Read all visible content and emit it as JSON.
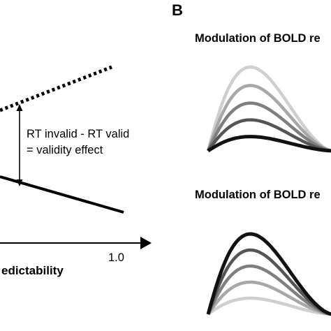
{
  "panel_b": {
    "letter": "B",
    "top_title": "Modulation of BOLD re",
    "bottom_title": "Modulation of BOLD re",
    "top_curve_colors": [
      "#cfcfcf",
      "#a8a8a8",
      "#7f7f7f",
      "#555555",
      "#111111"
    ],
    "bottom_curve_colors": [
      "#cfcfcf",
      "#a8a8a8",
      "#7f7f7f",
      "#555555",
      "#111111"
    ],
    "top_relative_peaks": [
      1.0,
      0.78,
      0.57,
      0.37,
      0.17
    ],
    "bottom_relative_peaks": [
      0.2,
      0.4,
      0.6,
      0.8,
      1.0
    ]
  },
  "panel_a": {
    "effect_label_line1": "RT invalid - RT valid",
    "effect_label_line2": "= validity effect",
    "x_axis_tick": "1.0",
    "x_axis_label": "edictability",
    "invalid_line_style": "dotted",
    "valid_line_style": "solid"
  },
  "colors": {
    "ink": "#000000",
    "background": "#ffffff"
  }
}
